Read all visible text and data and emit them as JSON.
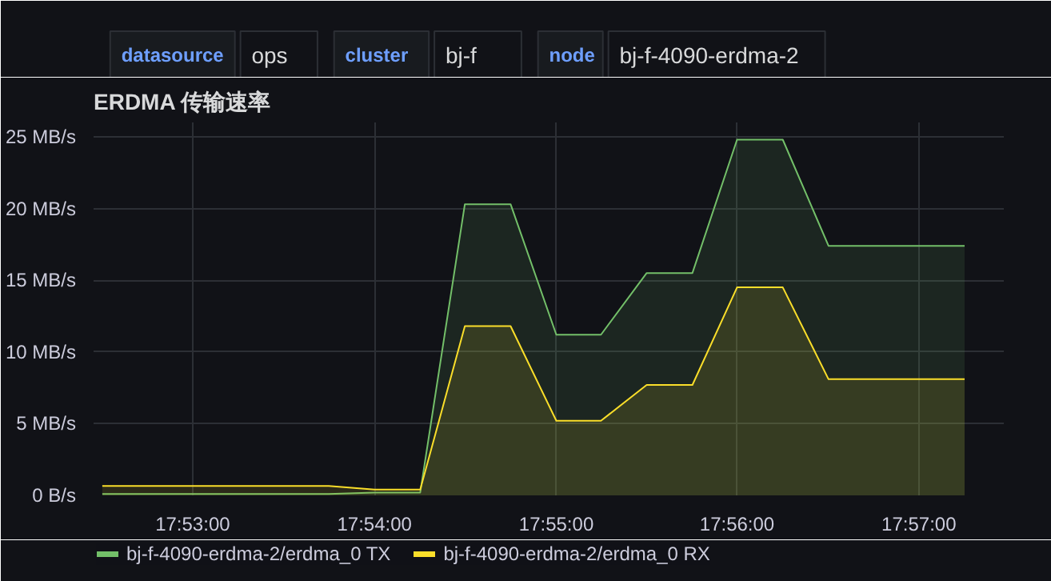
{
  "chart_data": {
    "type": "area",
    "title": "ERDMA 传输速率",
    "annotations": [
      "datasource",
      "ops",
      "cluster",
      "bj-f",
      "node",
      "bj-f-4090-erdma-2"
    ],
    "x": [
      17.875,
      17.8792,
      17.8833,
      17.8875,
      17.8917,
      17.8958,
      17.9,
      17.9042,
      17.9083,
      17.9125,
      17.9167,
      17.9208,
      17.925,
      17.9292,
      17.9333,
      17.9375,
      17.9417,
      17.9458,
      17.95,
      17.9542
    ],
    "series": [
      {
        "name": "bj-f-4090-erdma-2/erdma_0 TX",
        "color": "#73bf69",
        "values": [
          0.1,
          0.1,
          0.1,
          0.1,
          0.1,
          0.1,
          0.2,
          0.2,
          20.3,
          20.3,
          11.2,
          11.2,
          15.5,
          15.5,
          24.8,
          24.8,
          17.4,
          17.4,
          17.4,
          17.4
        ]
      },
      {
        "name": "bj-f-4090-erdma-2/erdma_0 RX",
        "color": "#fade2a",
        "values": [
          0.65,
          0.65,
          0.65,
          0.65,
          0.65,
          0.65,
          0.4,
          0.4,
          11.8,
          11.8,
          5.2,
          5.2,
          7.7,
          7.7,
          14.5,
          14.5,
          8.1,
          8.1,
          8.1,
          8.1
        ]
      }
    ],
    "xlim": [
      17.8742,
      17.9578
    ],
    "xticks": [
      {
        "value": 17.8833,
        "label": "17:53:00"
      },
      {
        "value": 17.9,
        "label": "17:54:00"
      },
      {
        "value": 17.9167,
        "label": "17:55:00"
      },
      {
        "value": 17.9333,
        "label": "17:56:00"
      },
      {
        "value": 17.95,
        "label": "17:57:00"
      }
    ],
    "ylim": [
      0,
      26
    ],
    "yticks": [
      {
        "value": 0,
        "label": "0 B/s"
      },
      {
        "value": 5,
        "label": "5 MB/s"
      },
      {
        "value": 10,
        "label": "10 MB/s"
      },
      {
        "value": 15,
        "label": "15 MB/s"
      },
      {
        "value": 20,
        "label": "20 MB/s"
      },
      {
        "value": 25,
        "label": "25 MB/s"
      }
    ],
    "grid": true,
    "legend": "bottom",
    "line_style": "solid",
    "marker": "none"
  }
}
